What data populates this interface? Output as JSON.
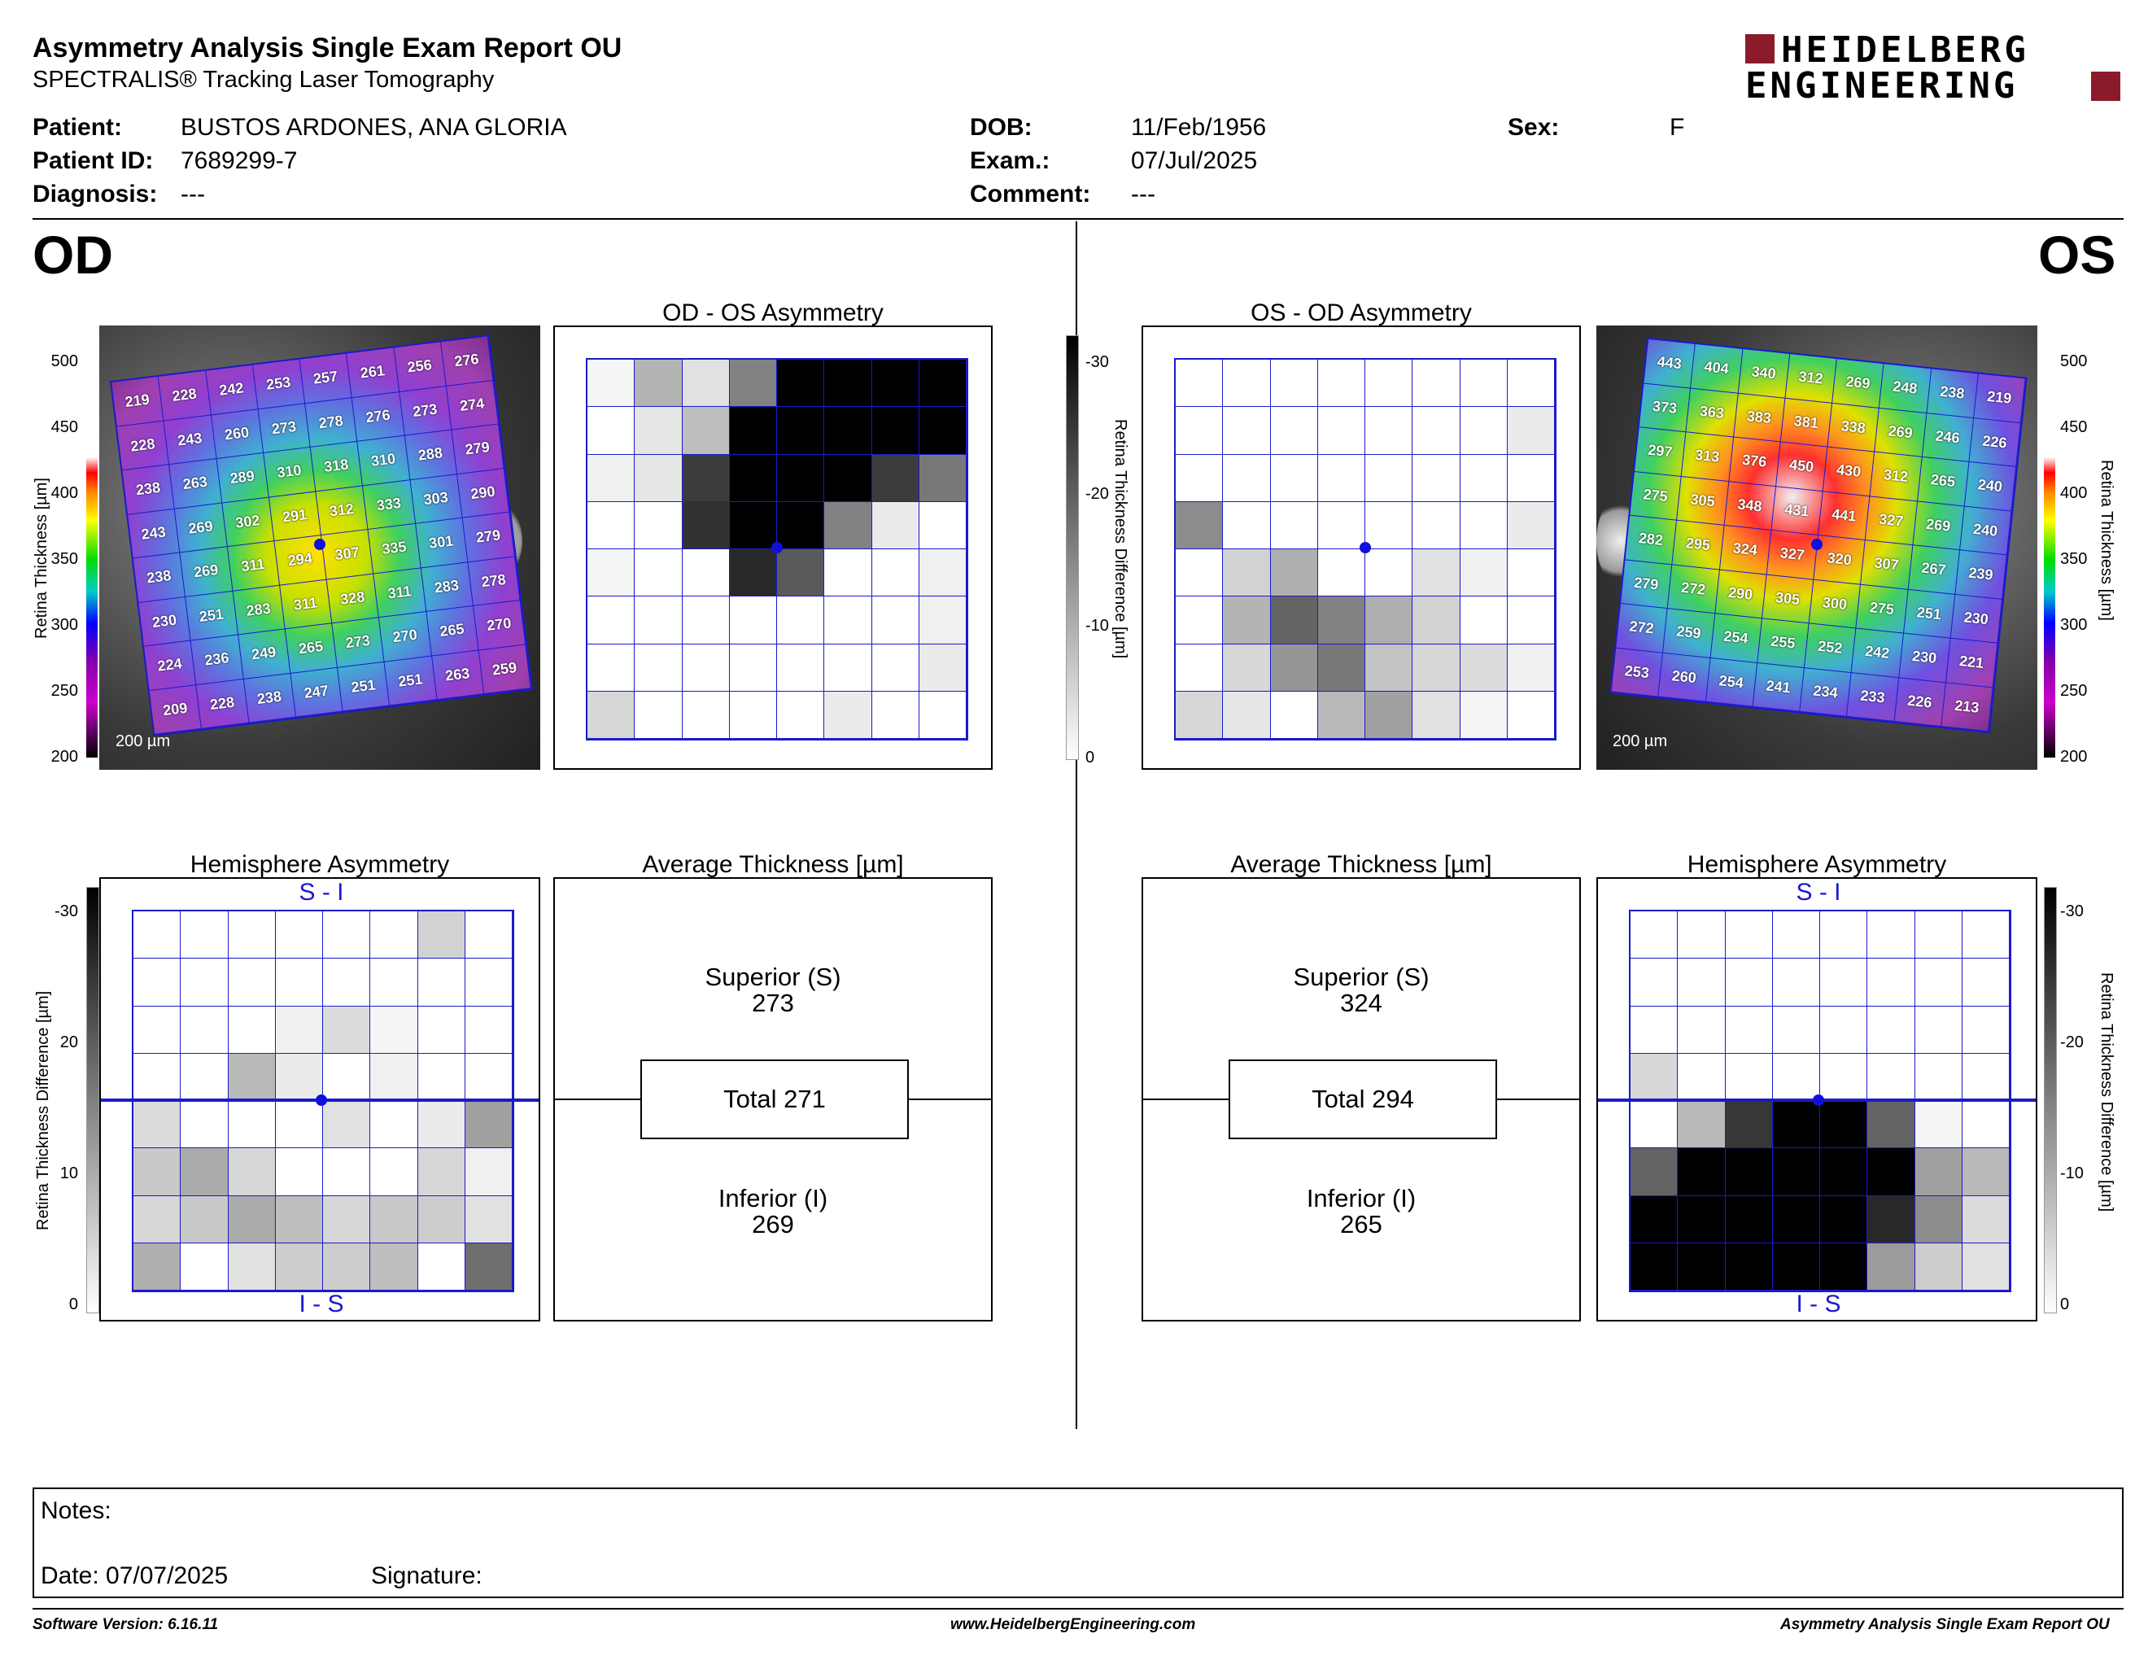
{
  "header": {
    "title": "Asymmetry Analysis Single Exam Report OU",
    "subtitle": "SPECTRALIS® Tracking Laser Tomography",
    "logo_line1": "HEIDELBERG",
    "logo_line2": "ENGINEERING"
  },
  "patient": {
    "patient_label": "Patient:",
    "patient_value": "BUSTOS ARDONES, ANA GLORIA",
    "id_label": "Patient ID:",
    "id_value": "7689299-7",
    "diagnosis_label": "Diagnosis:",
    "diagnosis_value": "---",
    "dob_label": "DOB:",
    "dob_value": "11/Feb/1956",
    "exam_label": "Exam.:",
    "exam_value": "07/Jul/2025",
    "comment_label": "Comment:",
    "comment_value": "---",
    "sex_label": "Sex:",
    "sex_value": "F"
  },
  "od": {
    "eye_label": "OD",
    "asym_title": "OD - OS Asymmetry",
    "hemi_title": "Hemisphere Asymmetry",
    "avg_title": "Average Thickness [µm]",
    "scale_label": "200 µm",
    "thickness_map": [
      [
        219,
        228,
        242,
        253,
        257,
        261,
        256,
        276
      ],
      [
        228,
        243,
        260,
        273,
        278,
        276,
        273,
        274
      ],
      [
        238,
        263,
        289,
        310,
        318,
        310,
        288,
        279
      ],
      [
        243,
        269,
        302,
        291,
        312,
        333,
        303,
        290
      ],
      [
        238,
        269,
        311,
        294,
        307,
        335,
        301,
        279
      ],
      [
        230,
        251,
        283,
        311,
        328,
        311,
        283,
        278
      ],
      [
        224,
        236,
        249,
        265,
        273,
        270,
        265,
        270
      ],
      [
        209,
        228,
        238,
        247,
        251,
        251,
        263,
        259
      ]
    ],
    "asym_grid": [
      [
        245,
        180,
        225,
        130,
        0,
        0,
        0,
        0
      ],
      [
        255,
        230,
        190,
        0,
        0,
        0,
        0,
        0
      ],
      [
        240,
        230,
        60,
        0,
        0,
        0,
        60,
        120
      ],
      [
        255,
        255,
        50,
        0,
        0,
        130,
        235,
        255
      ],
      [
        245,
        255,
        255,
        40,
        90,
        255,
        255,
        240
      ],
      [
        255,
        255,
        255,
        255,
        255,
        255,
        255,
        240
      ],
      [
        255,
        255,
        255,
        255,
        255,
        255,
        255,
        235
      ],
      [
        215,
        255,
        255,
        255,
        255,
        235,
        255,
        255
      ]
    ],
    "hemi_grid": [
      [
        255,
        255,
        255,
        255,
        255,
        255,
        210,
        255
      ],
      [
        255,
        255,
        255,
        255,
        255,
        255,
        255,
        255
      ],
      [
        255,
        255,
        255,
        240,
        220,
        245,
        255,
        255
      ],
      [
        255,
        255,
        185,
        235,
        255,
        240,
        255,
        255
      ],
      [
        220,
        255,
        255,
        255,
        225,
        255,
        235,
        160
      ],
      [
        200,
        170,
        215,
        255,
        255,
        255,
        215,
        240
      ],
      [
        215,
        200,
        170,
        190,
        215,
        200,
        205,
        225
      ],
      [
        175,
        255,
        225,
        205,
        205,
        190,
        255,
        110
      ]
    ],
    "hemi_top": "S - I",
    "hemi_bottom": "I - S",
    "superior_label": "Superior (S)",
    "superior_value": "273",
    "total_text": "Total 271",
    "inferior_label": "Inferior (I)",
    "inferior_value": "269"
  },
  "os": {
    "eye_label": "OS",
    "asym_title": "OS - OD Asymmetry",
    "hemi_title": "Hemisphere Asymmetry",
    "avg_title": "Average Thickness [µm]",
    "scale_label": "200 µm",
    "thickness_map": [
      [
        443,
        404,
        340,
        312,
        269,
        248,
        238,
        219
      ],
      [
        373,
        363,
        383,
        381,
        338,
        269,
        246,
        226
      ],
      [
        297,
        313,
        376,
        450,
        430,
        312,
        265,
        240
      ],
      [
        275,
        305,
        348,
        431,
        441,
        327,
        269,
        240
      ],
      [
        282,
        295,
        324,
        327,
        320,
        307,
        267,
        239
      ],
      [
        279,
        272,
        290,
        305,
        300,
        275,
        251,
        230
      ],
      [
        272,
        259,
        254,
        255,
        252,
        242,
        230,
        221
      ],
      [
        253,
        260,
        254,
        241,
        234,
        233,
        226,
        213
      ]
    ],
    "asym_grid": [
      [
        255,
        255,
        255,
        255,
        255,
        255,
        255,
        255
      ],
      [
        255,
        255,
        255,
        255,
        255,
        255,
        255,
        235
      ],
      [
        255,
        255,
        255,
        255,
        255,
        255,
        255,
        255
      ],
      [
        140,
        255,
        255,
        255,
        255,
        255,
        255,
        235
      ],
      [
        255,
        210,
        175,
        255,
        255,
        225,
        240,
        255
      ],
      [
        255,
        180,
        100,
        130,
        175,
        210,
        255,
        255
      ],
      [
        255,
        215,
        150,
        120,
        195,
        215,
        220,
        240
      ],
      [
        215,
        230,
        255,
        185,
        160,
        225,
        245,
        255
      ]
    ],
    "hemi_grid": [
      [
        255,
        255,
        255,
        255,
        255,
        255,
        255,
        255
      ],
      [
        255,
        255,
        255,
        255,
        255,
        255,
        255,
        255
      ],
      [
        255,
        255,
        255,
        255,
        255,
        255,
        255,
        255
      ],
      [
        215,
        255,
        255,
        255,
        255,
        255,
        255,
        255
      ],
      [
        255,
        185,
        55,
        0,
        0,
        100,
        245,
        255
      ],
      [
        100,
        0,
        0,
        0,
        0,
        0,
        160,
        185
      ],
      [
        0,
        0,
        0,
        0,
        0,
        40,
        140,
        220
      ],
      [
        0,
        0,
        0,
        0,
        0,
        155,
        205,
        225
      ]
    ],
    "hemi_top": "S - I",
    "hemi_bottom": "I - S",
    "superior_label": "Superior (S)",
    "superior_value": "324",
    "total_text": "Total 294",
    "inferior_label": "Inferior (I)",
    "inferior_value": "265"
  },
  "scales": {
    "thickness_ticks": [
      "500",
      "450",
      "400",
      "350",
      "300",
      "250",
      "200"
    ],
    "thickness_axis_label": "Retina Thickness [µm]",
    "diff_ticks_top": [
      "-30",
      "-20",
      "-10",
      "0"
    ],
    "diff_axis_label": "Retina Thickness Difference [µm]",
    "hemi_ticks": [
      "-30",
      "20",
      "10",
      "0"
    ],
    "hemi_ticks_right": [
      "-30",
      "-20",
      "-10",
      "0"
    ]
  },
  "notes": {
    "notes_label": "Notes:",
    "date_label": "Date: 07/07/2025",
    "signature_label": "Signature:"
  },
  "footer": {
    "software": "Software Version: 6.16.11",
    "website": "www.HeidelbergEngineering.com",
    "report": "Asymmetry Analysis Single Exam Report OU"
  },
  "colors": {
    "grid_blue": "#1a1acc",
    "logo_red": "#8b1a2b"
  }
}
